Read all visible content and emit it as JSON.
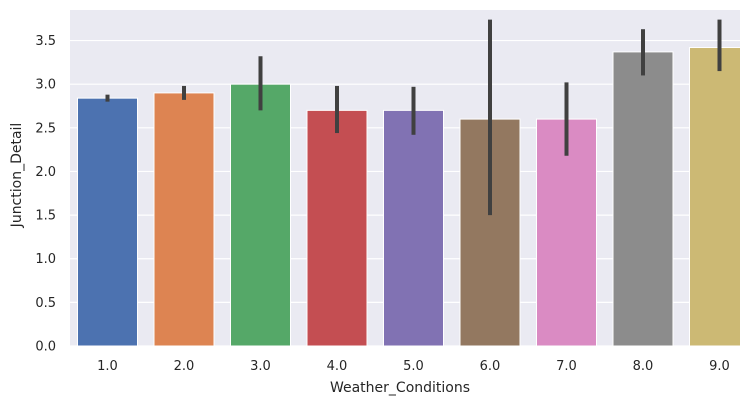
{
  "chart_data": {
    "type": "bar",
    "xlabel": "Weather_Conditions",
    "ylabel": "Junction_Detail",
    "categories": [
      "1.0",
      "2.0",
      "3.0",
      "4.0",
      "5.0",
      "6.0",
      "7.0",
      "8.0",
      "9.0"
    ],
    "values": [
      2.84,
      2.9,
      3.0,
      2.7,
      2.7,
      2.6,
      2.6,
      3.37,
      3.42
    ],
    "error_low": [
      2.8,
      2.82,
      2.7,
      2.44,
      2.42,
      1.5,
      2.18,
      3.1,
      3.15
    ],
    "error_high": [
      2.88,
      2.98,
      3.32,
      2.98,
      2.97,
      3.74,
      3.02,
      3.63,
      3.74
    ],
    "ylim": [
      0,
      3.85
    ],
    "y_ticks": [
      "0.0",
      "0.5",
      "1.0",
      "1.5",
      "2.0",
      "2.5",
      "3.0",
      "3.5"
    ],
    "grid": true,
    "background_color": "#eaeaf2",
    "error_bar_color": "#404040",
    "colors": [
      "#4c72b0",
      "#dd8452",
      "#55a868",
      "#c44e52",
      "#8172b3",
      "#937860",
      "#da8bc3",
      "#8c8c8c",
      "#ccb974"
    ]
  }
}
